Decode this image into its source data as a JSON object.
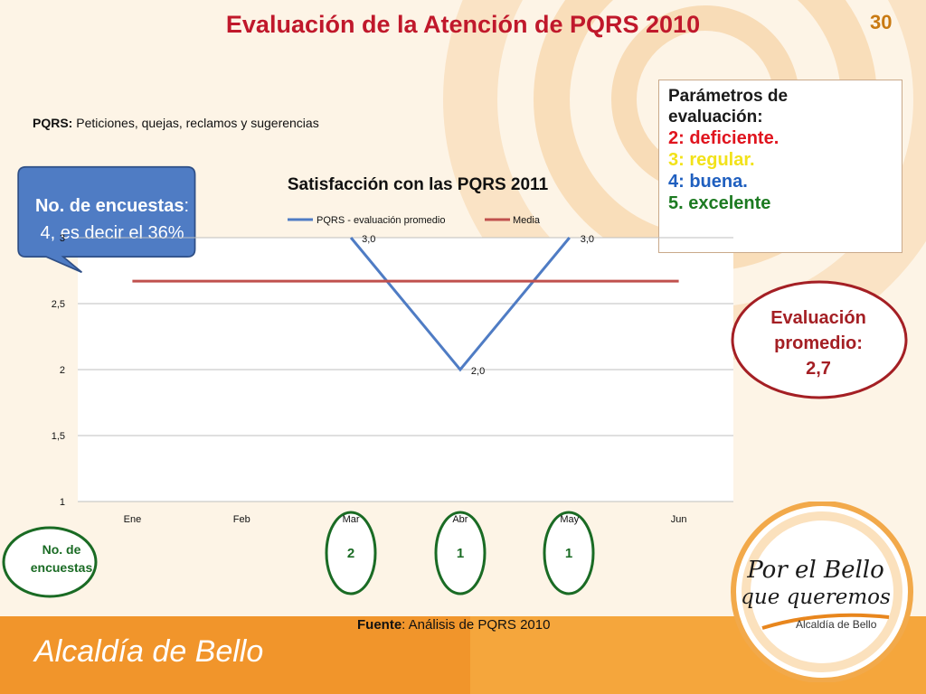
{
  "slide": {
    "title": "Evaluación de la Atención de PQRS 2010",
    "number": "30"
  },
  "definition": {
    "term": "PQRS:",
    "text": " Peticiones, quejas, reclamos y sugerencias"
  },
  "parameters": {
    "heading_1": "Parámetros de",
    "heading_2": "evaluación:",
    "items": [
      {
        "text": "2: deficiente.",
        "color": "#e0141e"
      },
      {
        "text": "3: regular.",
        "color": "#f2e21a"
      },
      {
        "text": "4: buena.",
        "color": "#1f5fbf"
      },
      {
        "text": "5. excelente",
        "color": "#1c7a21"
      }
    ]
  },
  "callout": {
    "key": "No. de encuestas",
    "colon": ":",
    "line2": "4, es decir el 36%",
    "color": "#4f7cc4"
  },
  "evaluation": {
    "line1": "Evaluación",
    "line2": "promedio:",
    "value": "2,7"
  },
  "surveys": {
    "label_1": "No. de",
    "label_2": "encuestas",
    "counts": [
      {
        "month": "Mar",
        "value": "2"
      },
      {
        "month": "Abr",
        "value": "1"
      },
      {
        "month": "May",
        "value": "1"
      }
    ]
  },
  "source": {
    "key": "Fuente",
    "text": ": Análisis de PQRS 2010"
  },
  "footer": {
    "brand": "Alcaldía de Bello"
  },
  "badge": {
    "line1": "Por el Bello",
    "line2": "que queremos",
    "sub": "Alcaldía de Bello"
  },
  "chart_data": {
    "type": "line",
    "title": "Satisfacción con las PQRS 2011",
    "categories": [
      "Ene",
      "Feb",
      "Mar",
      "Abr",
      "May",
      "Jun"
    ],
    "ylim": [
      1,
      3
    ],
    "yticks": [
      "1",
      "1,5",
      "2",
      "2,5",
      "3"
    ],
    "ytick_values": [
      1,
      1.5,
      2,
      2.5,
      3
    ],
    "series": [
      {
        "name": "PQRS - evaluación promedio",
        "color": "#4f7cc4",
        "values": [
          null,
          null,
          3.0,
          2.0,
          3.0,
          null
        ],
        "labels": [
          null,
          null,
          "3,0",
          "2,0",
          "3,0",
          null
        ]
      },
      {
        "name": "Media",
        "color": "#c0504d",
        "values": [
          2.67,
          2.67,
          2.67,
          2.67,
          2.67,
          2.67
        ]
      }
    ],
    "grid": true,
    "legend": "top"
  }
}
